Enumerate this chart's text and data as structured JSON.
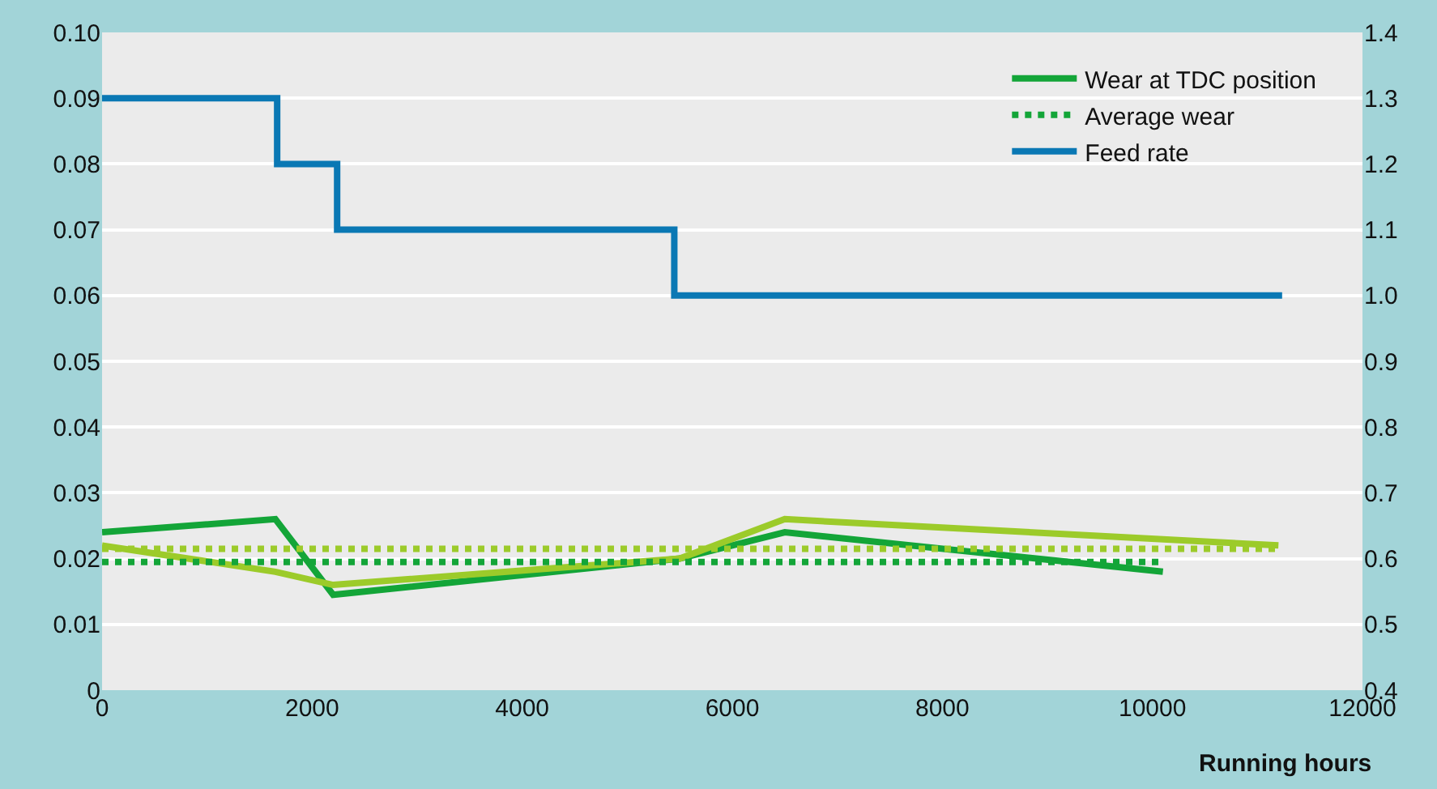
{
  "chart_data": {
    "type": "line",
    "xlabel": "Running hours",
    "xlim": [
      0,
      12000
    ],
    "xticks": [
      0,
      2000,
      4000,
      6000,
      8000,
      10000,
      12000
    ],
    "ylim": [
      0,
      0.1
    ],
    "yticks": [
      0,
      0.01,
      0.02,
      0.03,
      0.04,
      0.05,
      0.06,
      0.07,
      0.08,
      0.09,
      {
        "value": 0.1,
        "label": "0.10"
      }
    ],
    "y2lim": [
      0.4,
      1.4
    ],
    "y2ticks": [
      0.4,
      0.5,
      0.6,
      0.7,
      0.8,
      0.9,
      {
        "value": 1.0,
        "label": "1.0"
      },
      1.1,
      1.2,
      1.3,
      1.4
    ],
    "grid": "y",
    "legend": "top right",
    "marker": "none",
    "series": [
      {
        "name": "Wear at TDC position",
        "color": "#13a538",
        "line_style": "solid",
        "x": [
          0,
          1650,
          2200,
          5500,
          6500,
          10100
        ],
        "values": [
          0.024,
          0.026,
          0.0145,
          0.02,
          0.024,
          0.018
        ]
      },
      {
        "color": "#9ccb2a",
        "line_style": "solid",
        "x": [
          0,
          1650,
          2200,
          5500,
          6500,
          11200
        ],
        "values": [
          0.022,
          0.018,
          0.016,
          0.02,
          0.026,
          0.022
        ]
      },
      {
        "name": "Average wear",
        "color": "#13a538",
        "line_style": "dotted",
        "x": [
          0,
          10100
        ],
        "values": [
          0.0195,
          0.0195
        ]
      },
      {
        "color": "#9ccb2a",
        "line_style": "dotted",
        "x": [
          0,
          11200
        ],
        "values": [
          0.0215,
          0.0215
        ]
      },
      {
        "name": "Feed rate",
        "color": "#0a78b4",
        "type": "step",
        "axis": "y2",
        "line_style": "solid",
        "x": [
          0,
          1667,
          2238,
          5448,
          11235
        ],
        "values": [
          1.3,
          1.2,
          1.1,
          1.0,
          1.0
        ]
      }
    ]
  }
}
